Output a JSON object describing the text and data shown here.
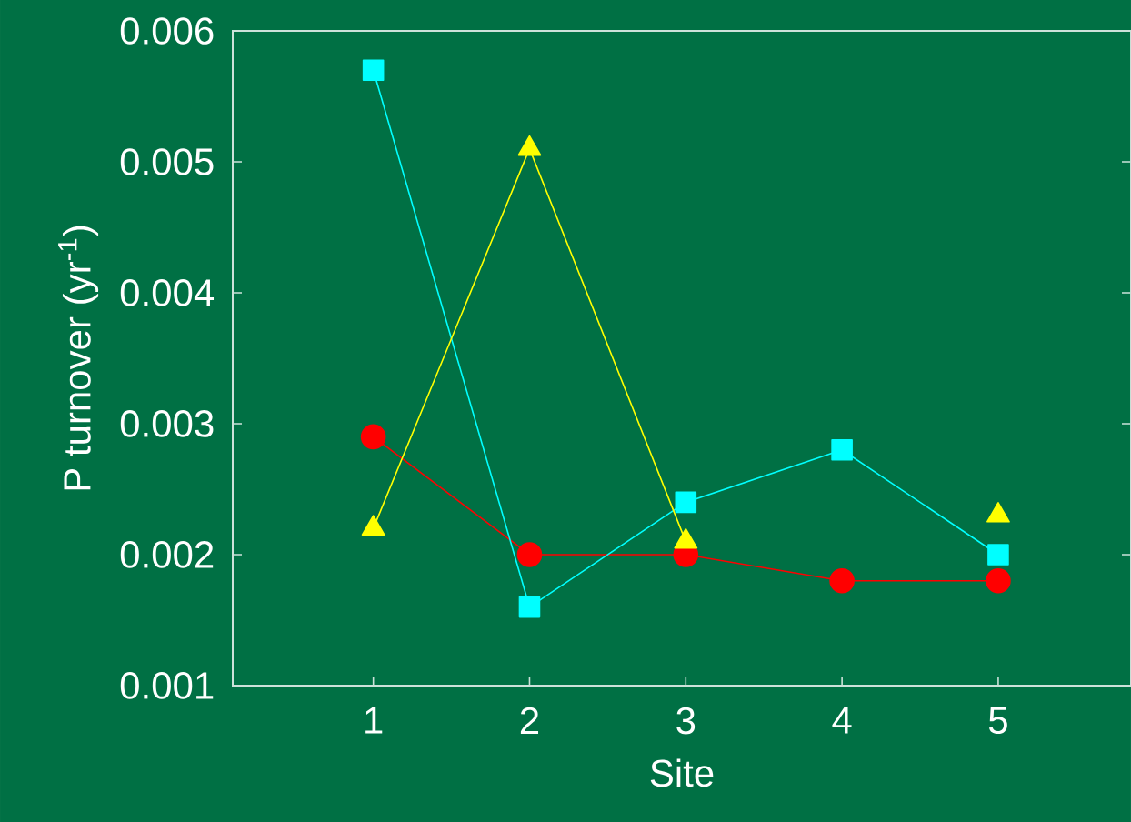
{
  "chart_data": {
    "type": "line",
    "xlabel": "Site",
    "ylabel": "P turnover (yr$^{-1}$)",
    "x": [
      1,
      2,
      3,
      4,
      5
    ],
    "series": [
      {
        "color": "#ff0000",
        "marker": "circle",
        "values": [
          0.0029,
          0.002,
          0.002,
          0.0018,
          0.0018
        ]
      },
      {
        "color": "#00ffff",
        "marker": "square",
        "values": [
          0.0057,
          0.0016,
          0.0024,
          0.0028,
          0.002
        ]
      },
      {
        "color": "#ffff00",
        "marker": "triangle",
        "values": [
          0.0022,
          0.0051,
          0.0021,
          null,
          0.0023
        ]
      }
    ],
    "xlim": [
      0.1,
      5.85
    ],
    "ylim": [
      0.001,
      0.006
    ],
    "xticks": [
      1,
      2,
      3,
      4,
      5
    ],
    "yticks": [
      0.001,
      0.002,
      0.003,
      0.004,
      0.005,
      0.006
    ],
    "grid": false
  }
}
